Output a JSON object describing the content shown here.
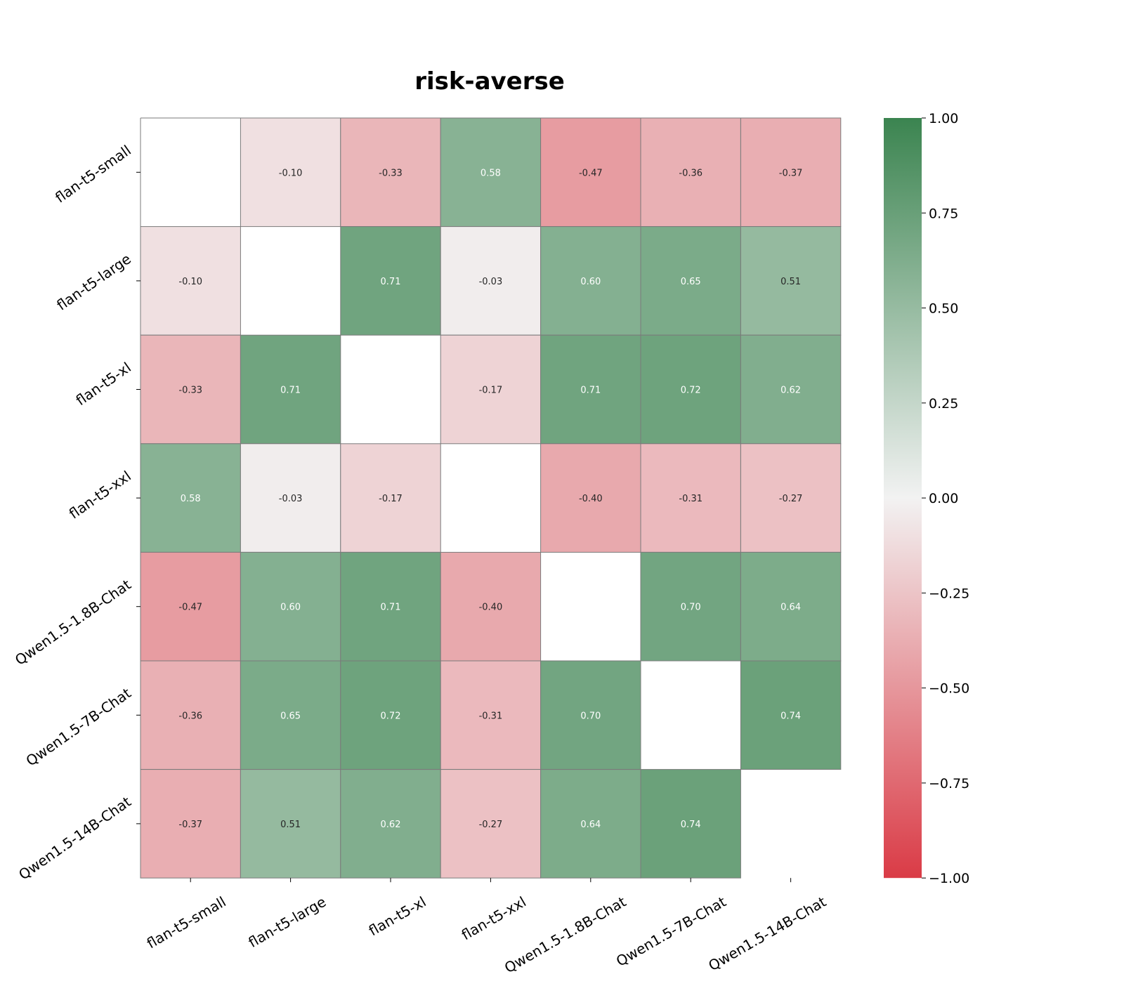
{
  "chart_data": {
    "type": "heatmap",
    "title": "risk-averse",
    "xlabel": "",
    "ylabel": "",
    "x_categories": [
      "flan-t5-small",
      "flan-t5-large",
      "flan-t5-xl",
      "flan-t5-xxl",
      "Qwen1.5-1.8B-Chat",
      "Qwen1.5-7B-Chat",
      "Qwen1.5-14B-Chat"
    ],
    "y_categories": [
      "flan-t5-small",
      "flan-t5-large",
      "flan-t5-xl",
      "flan-t5-xxl",
      "Qwen1.5-1.8B-Chat",
      "Qwen1.5-7B-Chat",
      "Qwen1.5-14B-Chat"
    ],
    "values": [
      [
        null,
        -0.1,
        -0.33,
        0.58,
        -0.47,
        -0.36,
        -0.37
      ],
      [
        -0.1,
        null,
        0.71,
        -0.03,
        0.6,
        0.65,
        0.51
      ],
      [
        -0.33,
        0.71,
        null,
        -0.17,
        0.71,
        0.72,
        0.62
      ],
      [
        0.58,
        -0.03,
        -0.17,
        null,
        -0.4,
        -0.31,
        -0.27
      ],
      [
        -0.47,
        0.6,
        0.71,
        -0.4,
        null,
        0.7,
        0.64
      ],
      [
        -0.36,
        0.65,
        0.72,
        -0.31,
        0.7,
        null,
        0.74
      ],
      [
        -0.37,
        0.51,
        0.62,
        -0.27,
        0.64,
        0.74,
        null
      ]
    ],
    "value_range": [
      -1.0,
      1.0
    ],
    "colorbar": {
      "ticks": [
        1.0,
        0.75,
        0.5,
        0.25,
        0.0,
        -0.25,
        -0.5,
        -0.75,
        -1.0
      ],
      "tick_labels": [
        "1.00",
        "0.75",
        "0.50",
        "0.25",
        "0.00",
        "−0.25",
        "−0.50",
        "−0.75",
        "−1.00"
      ],
      "low_color": "#da3b46",
      "mid_color": "#f2f2f2",
      "high_color": "#3b8450"
    },
    "grid": true,
    "legend": "colorbar-right"
  }
}
